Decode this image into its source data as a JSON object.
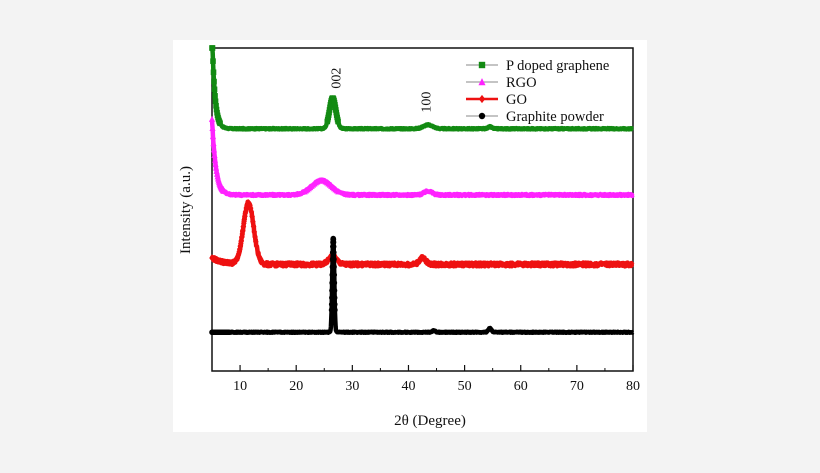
{
  "chart_data": {
    "type": "line",
    "xlabel": "2θ (Degree)",
    "ylabel": "Intensity (a.u.)",
    "xlim": [
      5,
      80
    ],
    "xticks": [
      10,
      20,
      30,
      40,
      50,
      60,
      70,
      80
    ],
    "yticks_shown": false,
    "grid": false,
    "legend_position": "top-right",
    "annotations": [
      {
        "text": "002",
        "x": 27
      },
      {
        "text": "100",
        "x": 43
      }
    ],
    "series": [
      {
        "name": "P doped graphene",
        "color": "#128a12",
        "marker": "square",
        "baseline": 0.75,
        "start_level": 1.05,
        "start_decay": 0.5,
        "peaks": [
          {
            "x": 26.5,
            "height": 0.095,
            "width": 0.8
          },
          {
            "x": 43.5,
            "height": 0.012,
            "width": 1.2
          },
          {
            "x": 54.5,
            "height": 0.006,
            "width": 0.5
          }
        ],
        "noise": 0.002
      },
      {
        "name": "RGO",
        "color": "#ff22ff",
        "marker": "triangle",
        "baseline": 0.545,
        "start_level": 0.78,
        "start_decay": 0.7,
        "peaks": [
          {
            "x": 24.5,
            "height": 0.045,
            "width": 2.5
          },
          {
            "x": 43.5,
            "height": 0.012,
            "width": 1.0
          }
        ],
        "noise": 0.003
      },
      {
        "name": "GO",
        "color": "#ee1111",
        "marker": "diamond",
        "baseline": 0.33,
        "start_level": 0.35,
        "start_decay": 2.0,
        "peaks": [
          {
            "x": 11.5,
            "height": 0.19,
            "width": 1.3
          },
          {
            "x": 26.5,
            "height": 0.025,
            "width": 1.0
          },
          {
            "x": 42.5,
            "height": 0.02,
            "width": 0.8
          }
        ],
        "noise": 0.006
      },
      {
        "name": "Graphite powder",
        "color": "#000000",
        "marker": "circle",
        "baseline": 0.12,
        "start_level": 0.12,
        "start_decay": 1.0,
        "peaks": [
          {
            "x": 26.6,
            "height": 0.29,
            "width": 0.25
          },
          {
            "x": 44.5,
            "height": 0.005,
            "width": 0.4
          },
          {
            "x": 54.5,
            "height": 0.012,
            "width": 0.4
          }
        ],
        "noise": 0.0015
      }
    ]
  }
}
